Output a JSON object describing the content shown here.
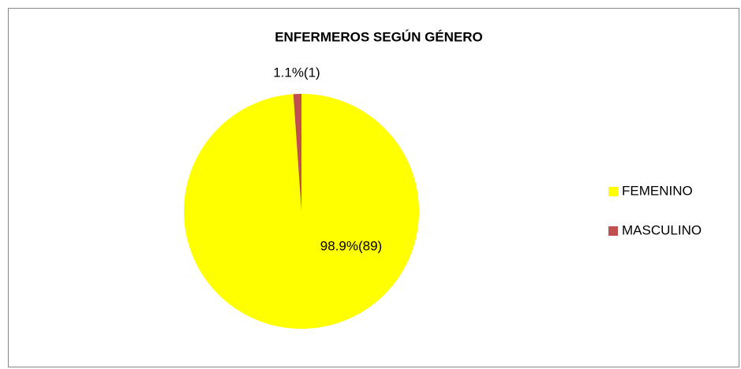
{
  "chart_data": {
    "type": "pie",
    "title": "ENFERMEROS SEGÚN GÉNERO",
    "categories": [
      "FEMENINO",
      "MASCULINO"
    ],
    "values": [
      98.9,
      1.1
    ],
    "value_labels": [
      "98.9%(89)",
      "1.1%(1)"
    ],
    "colors": [
      "#ffff00",
      "#c0504d"
    ],
    "legend": "right"
  }
}
